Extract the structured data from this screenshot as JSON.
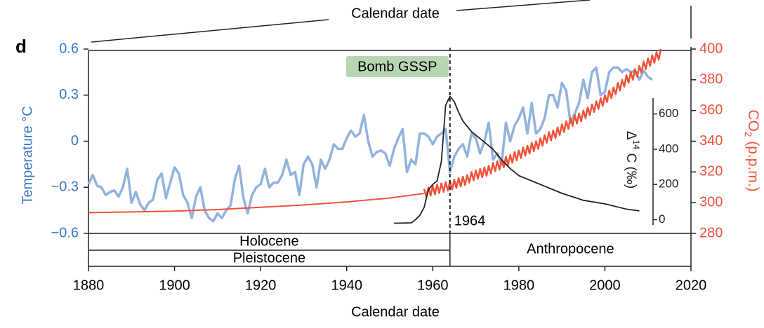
{
  "chart_data": {
    "type": "line",
    "panel_letter": "d",
    "xlabel": "Calendar date",
    "xlabel_top": "Calendar date",
    "ylabel": "Temperature °C",
    "y2label": [
      "CO",
      "2",
      " (p.p.m.)"
    ],
    "y3label": [
      "Δ",
      "14",
      " C (‰)"
    ],
    "xlim": [
      1880,
      2020
    ],
    "xticks": [
      1880,
      1900,
      1920,
      1940,
      1960,
      1980,
      2000,
      2020
    ],
    "ylim": [
      -0.6,
      0.6
    ],
    "yticks": [
      {
        "value": 0.6,
        "label": "0.6"
      },
      {
        "value": 0.3,
        "label": "0.3"
      },
      0,
      {
        "value": -0.3,
        "label": "−0.3"
      },
      {
        "value": -0.6,
        "label": "−0.6"
      }
    ],
    "y2lim": [
      280,
      400
    ],
    "y2ticks": [
      280,
      300,
      320,
      340,
      360,
      380,
      400
    ],
    "y3lim": [
      -30,
      690
    ],
    "y3ticks": [
      0,
      200,
      400,
      600
    ],
    "ycolor": "#3a78c2",
    "y2color": "#f0533a",
    "y3color": "#222222",
    "gssp": {
      "label": "Bomb GSSP",
      "year": 1964,
      "color": "#b9d6b2"
    },
    "epochs": [
      "Holocene",
      "Pleistocene",
      "Anthropocene"
    ],
    "series": [
      {
        "axis": "y",
        "color": "#93b3de",
        "width": 3.5,
        "x": [
          1880,
          1881,
          1882,
          1883,
          1884,
          1885,
          1886,
          1887,
          1888,
          1889,
          1890,
          1891,
          1892,
          1893,
          1894,
          1895,
          1896,
          1897,
          1898,
          1899,
          1900,
          1901,
          1902,
          1903,
          1904,
          1905,
          1906,
          1907,
          1908,
          1909,
          1910,
          1911,
          1912,
          1913,
          1914,
          1915,
          1916,
          1917,
          1918,
          1919,
          1920,
          1921,
          1922,
          1923,
          1924,
          1925,
          1926,
          1927,
          1928,
          1929,
          1930,
          1931,
          1932,
          1933,
          1934,
          1935,
          1936,
          1937,
          1938,
          1939,
          1940,
          1941,
          1942,
          1943,
          1944,
          1945,
          1946,
          1947,
          1948,
          1949,
          1950,
          1951,
          1952,
          1953,
          1954,
          1955,
          1956,
          1957,
          1958,
          1959,
          1960,
          1961,
          1962,
          1963,
          1964,
          1965,
          1966,
          1967,
          1968,
          1969,
          1970,
          1971,
          1972,
          1973,
          1974,
          1975,
          1976,
          1977,
          1978,
          1979,
          1980,
          1981,
          1982,
          1983,
          1984,
          1985,
          1986,
          1987,
          1988,
          1989,
          1990,
          1991,
          1992,
          1993,
          1994,
          1995,
          1996,
          1997,
          1998,
          1999,
          2000,
          2001,
          2002,
          2003,
          2004,
          2005,
          2006,
          2007,
          2008,
          2009,
          2010,
          2011
        ],
        "values": [
          -0.28,
          -0.22,
          -0.29,
          -0.3,
          -0.35,
          -0.33,
          -0.32,
          -0.36,
          -0.3,
          -0.18,
          -0.4,
          -0.33,
          -0.41,
          -0.45,
          -0.4,
          -0.38,
          -0.25,
          -0.21,
          -0.37,
          -0.27,
          -0.17,
          -0.21,
          -0.35,
          -0.4,
          -0.5,
          -0.36,
          -0.3,
          -0.45,
          -0.5,
          -0.52,
          -0.47,
          -0.5,
          -0.45,
          -0.42,
          -0.25,
          -0.16,
          -0.37,
          -0.47,
          -0.35,
          -0.3,
          -0.28,
          -0.18,
          -0.3,
          -0.27,
          -0.27,
          -0.22,
          -0.12,
          -0.22,
          -0.2,
          -0.35,
          -0.15,
          -0.1,
          -0.15,
          -0.3,
          -0.12,
          -0.18,
          -0.12,
          -0.02,
          -0.05,
          -0.05,
          0.02,
          0.07,
          0.03,
          0.05,
          0.17,
          0.0,
          -0.1,
          -0.07,
          -0.06,
          -0.08,
          -0.16,
          -0.05,
          0.02,
          0.08,
          -0.2,
          -0.12,
          -0.15,
          0.05,
          0.05,
          0.03,
          -0.02,
          0.03,
          0.05,
          0.08,
          -0.2,
          -0.1,
          -0.05,
          -0.02,
          -0.1,
          0.05,
          0.02,
          -0.08,
          0.0,
          0.12,
          -0.12,
          -0.08,
          -0.15,
          0.12,
          0.0,
          0.1,
          0.15,
          0.22,
          0.05,
          0.25,
          0.05,
          0.08,
          0.15,
          0.3,
          0.3,
          0.22,
          0.38,
          0.33,
          0.12,
          0.18,
          0.25,
          0.4,
          0.28,
          0.45,
          0.48,
          0.3,
          0.32,
          0.45,
          0.48,
          0.48,
          0.45,
          0.47,
          0.45,
          0.46,
          0.4,
          0.46,
          0.42,
          0.4
        ]
      },
      {
        "axis": "y2",
        "color": "#f0533a",
        "width": 2,
        "x": [
          1880,
          1890,
          1900,
          1910,
          1920,
          1930,
          1940,
          1950,
          1958
        ],
        "values": [
          293.5,
          294,
          294.5,
          295.5,
          297,
          298.5,
          300.5,
          303,
          306
        ]
      },
      {
        "axis": "y2",
        "color": "#f0533a",
        "width": 2.5,
        "x": [
          1958,
          1958.5,
          1959,
          1959.5,
          1960,
          1960.5,
          1961,
          1961.5,
          1962,
          1962.5,
          1963,
          1963.5,
          1964,
          1964.5,
          1965,
          1965.5,
          1966,
          1966.5,
          1967,
          1967.5,
          1968,
          1968.5,
          1969,
          1969.5,
          1970,
          1970.5,
          1971,
          1971.5,
          1972,
          1972.5,
          1973,
          1973.5,
          1974,
          1974.5,
          1975,
          1975.5,
          1976,
          1976.5,
          1977,
          1977.5,
          1978,
          1978.5,
          1979,
          1979.5,
          1980,
          1980.5,
          1981,
          1981.5,
          1982,
          1982.5,
          1983,
          1983.5,
          1984,
          1984.5,
          1985,
          1985.5,
          1986,
          1986.5,
          1987,
          1987.5,
          1988,
          1988.5,
          1989,
          1989.5,
          1990,
          1990.5,
          1991,
          1991.5,
          1992,
          1992.5,
          1993,
          1993.5,
          1994,
          1994.5,
          1995,
          1995.5,
          1996,
          1996.5,
          1997,
          1997.5,
          1998,
          1998.5,
          1999,
          1999.5,
          2000,
          2000.5,
          2001,
          2001.5,
          2002,
          2002.5,
          2003,
          2003.5,
          2004,
          2004.5,
          2005,
          2005.5,
          2006,
          2006.5,
          2007,
          2007.5,
          2008,
          2008.5,
          2009,
          2009.5,
          2010,
          2010.5,
          2011,
          2011.5,
          2012,
          2012.5,
          2013
        ],
        "values": [
          309,
          303.5,
          310,
          304.5,
          311,
          305.4,
          311.8,
          306.2,
          312.6,
          307,
          313.4,
          307.8,
          314.2,
          308.6,
          315,
          309.5,
          316,
          310.5,
          317,
          311.5,
          318,
          313,
          320,
          314.5,
          321,
          315.5,
          322,
          316.5,
          323,
          317.5,
          324,
          319,
          326,
          320.5,
          327,
          321.5,
          328,
          323,
          330,
          324.5,
          331,
          326,
          333,
          327.5,
          334,
          329,
          336,
          330.5,
          337,
          332,
          339,
          333.5,
          340,
          335,
          342,
          337,
          344,
          339,
          346,
          340.5,
          347,
          342,
          349,
          344,
          351,
          346,
          353,
          348,
          355,
          350,
          357,
          351.5,
          358,
          353,
          360,
          355,
          362,
          357,
          364,
          359,
          366,
          361,
          368,
          363,
          370,
          365.5,
          373,
          368,
          375,
          370.5,
          378,
          373,
          380,
          375.5,
          383,
          378,
          385,
          380,
          387,
          382,
          389,
          384.5,
          392,
          387,
          394,
          389,
          396,
          391,
          398,
          393,
          400
        ]
      },
      {
        "axis": "y3",
        "color": "#222222",
        "width": 1.8,
        "x": [
          1951,
          1955,
          1956,
          1957,
          1958,
          1959,
          1960,
          1961,
          1962,
          1963,
          1964,
          1965,
          1966,
          1967,
          1968,
          1969,
          1970,
          1972,
          1974,
          1976,
          1978,
          1980,
          1985,
          1990,
          1995,
          2000,
          2005,
          2008
        ],
        "values": [
          -20,
          -18,
          0,
          25,
          70,
          170,
          200,
          220,
          330,
          650,
          700,
          670,
          610,
          560,
          530,
          500,
          480,
          440,
          400,
          340,
          290,
          250,
          200,
          150,
          110,
          90,
          60,
          50
        ]
      }
    ]
  }
}
